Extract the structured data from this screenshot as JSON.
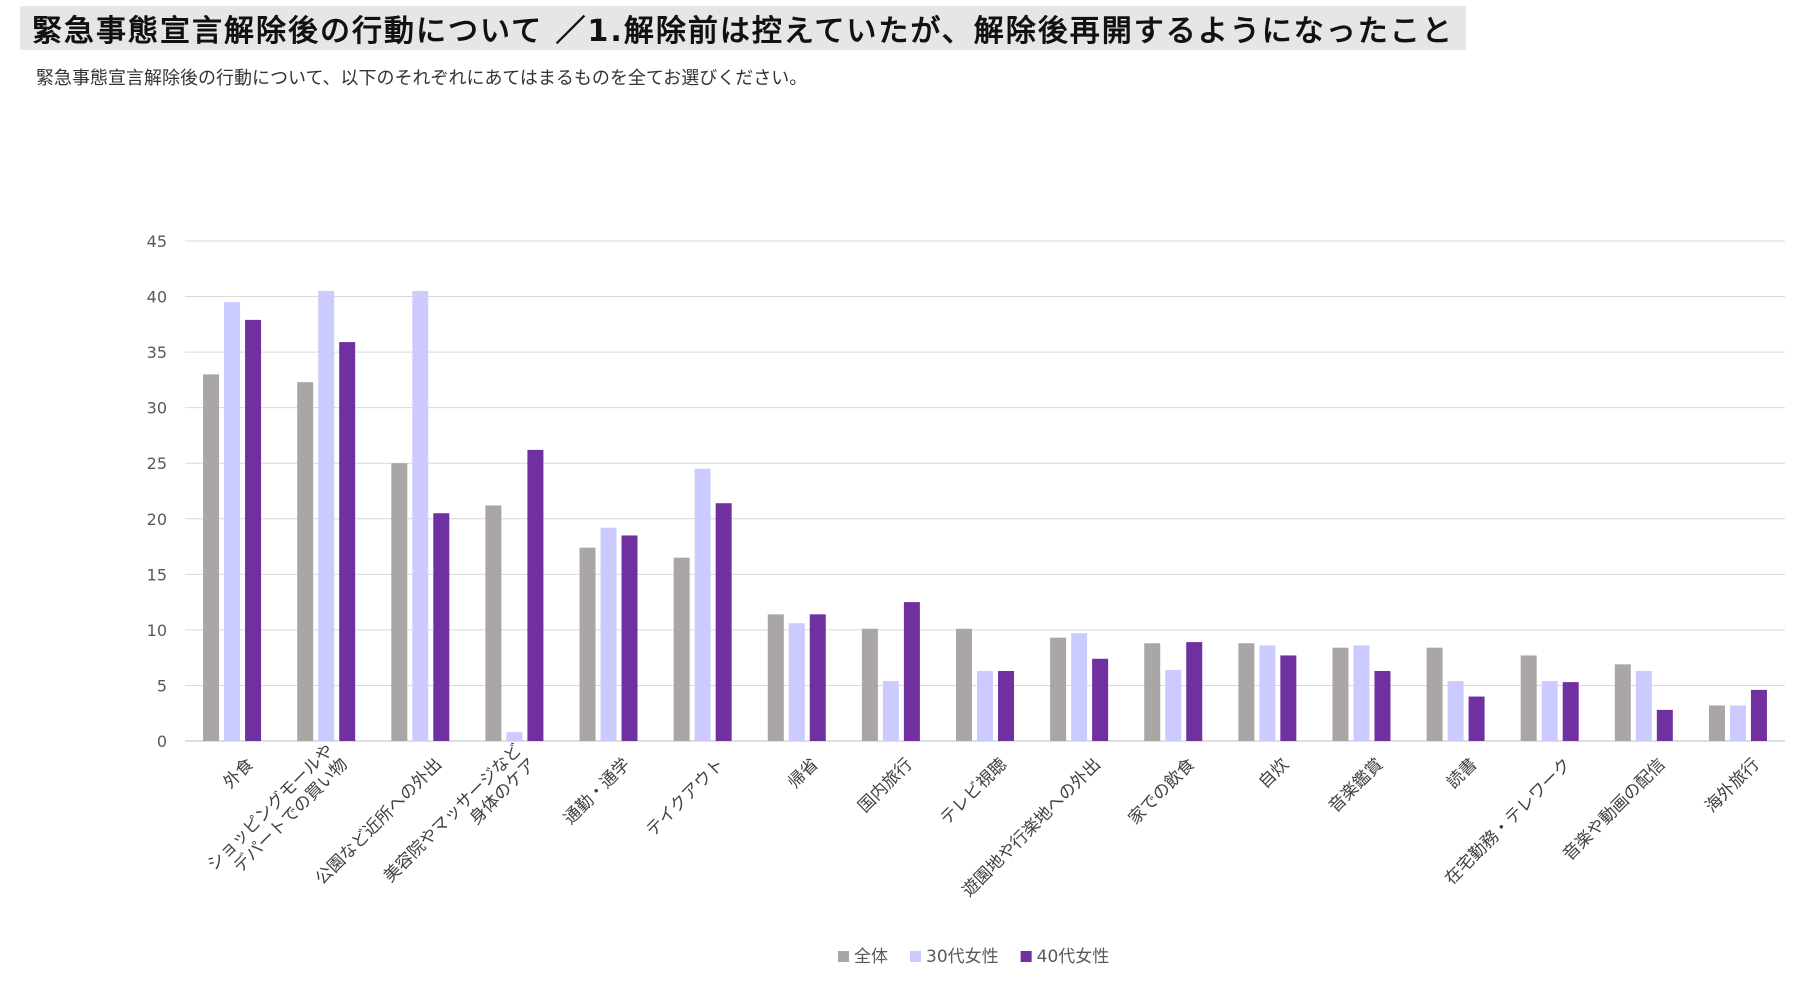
{
  "header": {
    "title": "緊急事態宣言解除後の行動について ／1.解除前は控えていたが、解除後再開するようになったこと",
    "subtitle": "緊急事態宣言解除後の行動について、以下のそれぞれにあてはまるものを全てお選びください。"
  },
  "chart_data": {
    "type": "bar",
    "title": "",
    "xlabel": "",
    "ylabel": "",
    "ylim": [
      0,
      45
    ],
    "yticks": [
      0,
      5,
      10,
      15,
      20,
      25,
      30,
      35,
      40,
      45
    ],
    "grid": true,
    "legend_position": "bottom",
    "categories": [
      [
        "外食"
      ],
      [
        "ショッピングモールや",
        "デパートでの買い物"
      ],
      [
        "公園など近所への外出"
      ],
      [
        "美容院やマッサージなど",
        "身体のケア"
      ],
      [
        "通勤・通学"
      ],
      [
        "テイクアウト"
      ],
      [
        "帰省"
      ],
      [
        "国内旅行"
      ],
      [
        "テレビ視聴"
      ],
      [
        "遊園地や行楽地への外出"
      ],
      [
        "家での飲食"
      ],
      [
        "自炊"
      ],
      [
        "音楽鑑賞"
      ],
      [
        "読書"
      ],
      [
        "在宅勤務・テレワーク"
      ],
      [
        "音楽や動画の配信"
      ],
      [
        "海外旅行"
      ]
    ],
    "series": [
      {
        "name": "全体",
        "color": "#aaa6a6",
        "values": [
          33.0,
          32.3,
          25.0,
          21.2,
          17.4,
          16.5,
          11.4,
          10.1,
          10.1,
          9.3,
          8.8,
          8.8,
          8.4,
          8.4,
          7.7,
          6.9,
          3.2
        ]
      },
      {
        "name": "30代女性",
        "color": "#cccbff",
        "values": [
          39.5,
          40.5,
          40.5,
          0.8,
          19.2,
          24.5,
          10.6,
          5.4,
          6.3,
          9.7,
          6.4,
          8.6,
          8.6,
          5.4,
          5.4,
          6.3,
          3.2
        ]
      },
      {
        "name": "40代女性",
        "color": "#7030a0",
        "values": [
          37.9,
          35.9,
          20.5,
          26.2,
          18.5,
          21.4,
          11.4,
          12.5,
          6.3,
          7.4,
          8.9,
          7.7,
          6.3,
          4.0,
          5.3,
          2.8,
          4.6
        ]
      }
    ]
  }
}
